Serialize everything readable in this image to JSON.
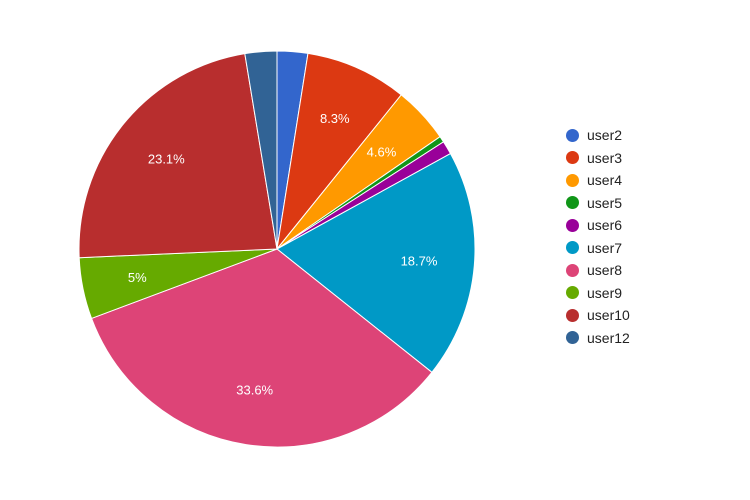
{
  "chart_data": {
    "type": "pie",
    "categories": [
      "user2",
      "user3",
      "user4",
      "user5",
      "user6",
      "user7",
      "user8",
      "user9",
      "user10",
      "user12"
    ],
    "values": [
      2.5,
      8.3,
      4.6,
      0.5,
      1.1,
      18.7,
      33.6,
      5,
      23.1,
      2.6
    ],
    "data_labels": [
      "",
      "8.3%",
      "4.6%",
      "",
      "",
      "18.7%",
      "33.6%",
      "5%",
      "23.1%",
      ""
    ],
    "colors": [
      "#3366cc",
      "#dc3912",
      "#ff9900",
      "#109618",
      "#990099",
      "#0099c6",
      "#dd4477",
      "#66aa00",
      "#b82e2e",
      "#316395"
    ],
    "legend_position": "right"
  }
}
